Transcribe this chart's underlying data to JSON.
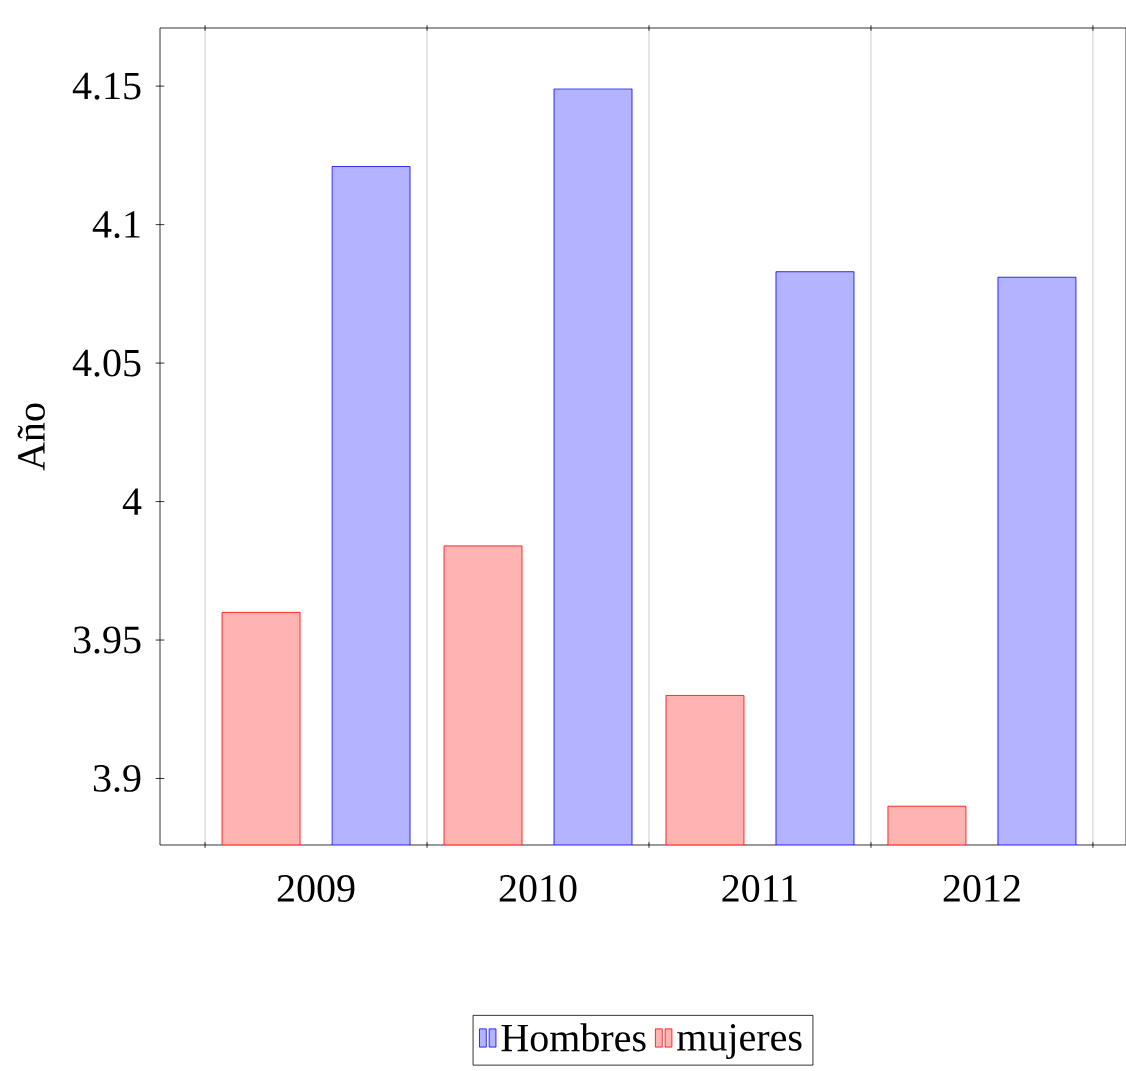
{
  "chart_data": {
    "type": "bar",
    "ylabel": "Año",
    "categories": [
      "2009",
      "2010",
      "2011",
      "2012"
    ],
    "series": [
      {
        "name": "mujeres",
        "color": "#ffb3b3",
        "values": [
          3.96,
          3.984,
          3.93,
          3.89
        ]
      },
      {
        "name": "Hombres",
        "color": "#b3b3ff",
        "values": [
          4.121,
          4.149,
          4.083,
          4.081
        ]
      }
    ],
    "ylim": [
      3.876,
      4.171
    ],
    "yticks": [
      3.9,
      3.95,
      4,
      4.05,
      4.1,
      4.15
    ],
    "grid": "x",
    "legend": "bottom"
  }
}
